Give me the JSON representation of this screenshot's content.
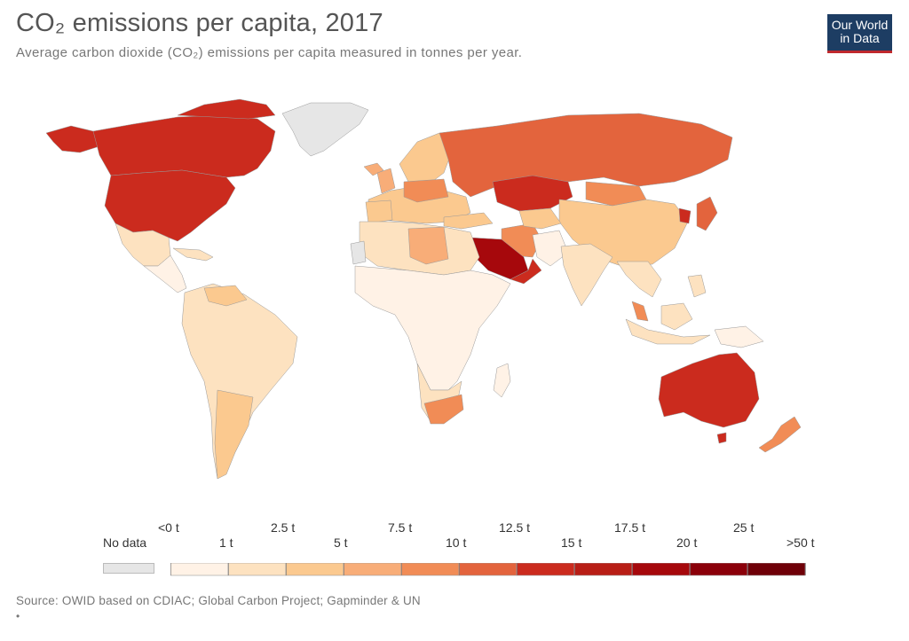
{
  "header": {
    "title": "CO₂ emissions per capita, 2017",
    "subtitle": "Average carbon dioxide (CO₂) emissions per capita measured in tonnes per year."
  },
  "logo": {
    "line1": "Our World",
    "line2": "in Data"
  },
  "legend": {
    "no_data_label": "No data",
    "no_data_color": "#e6e6e6",
    "upper_labels": [
      "<0 t",
      "2.5 t",
      "7.5 t",
      "12.5 t",
      "17.5 t",
      "25 t"
    ],
    "lower_labels": [
      "1 t",
      "5 t",
      "10 t",
      "15 t",
      "20 t",
      ">50 t"
    ],
    "colors": [
      "#fff2e6",
      "#fde2c0",
      "#fbc98f",
      "#f8ad78",
      "#f18c56",
      "#e3643d",
      "#cb2b1e",
      "#b81e16",
      "#a6080c",
      "#8b000a",
      "#6f0008"
    ]
  },
  "source": "Source: OWID based on CDIAC; Global Carbon Project; Gapminder & UN",
  "footer_bullet": "•"
}
